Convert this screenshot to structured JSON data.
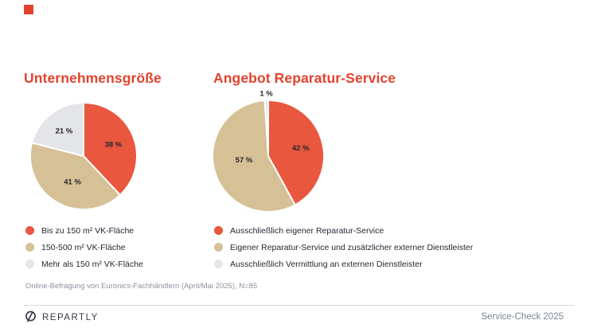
{
  "accent_color": "#e2432e",
  "chart_data": [
    {
      "type": "pie",
      "title": "Unternehmensgröße",
      "categories": [
        "Bis zu 150 m² VK-Fläche",
        "150-500 m² VK-Fläche",
        "Mehr als 150 m² VK-Fläche"
      ],
      "values": [
        38,
        41,
        21
      ],
      "value_labels": [
        "38 %",
        "41 %",
        "21 %"
      ],
      "colors": [
        "#e8573e",
        "#d6c096",
        "#e4e5e8"
      ],
      "start_angle": "top",
      "direction": "clockwise",
      "legend_position": "bottom-left"
    },
    {
      "type": "pie",
      "title": "Angebot Reparatur-Service",
      "categories": [
        "Ausschließlich eigener Reparatur-Service",
        "Eigener Reparatur-Service und zusätzlicher externer Dienstleister",
        "Ausschließlich Vermittlung an externen Dienstleister"
      ],
      "values": [
        42,
        57,
        1
      ],
      "value_labels": [
        "42 %",
        "57 %",
        "1 %"
      ],
      "colors": [
        "#e8573e",
        "#d6c096",
        "#e4e5e8"
      ],
      "start_angle": "top",
      "direction": "clockwise",
      "legend_position": "bottom-left"
    }
  ],
  "footnote": "Online-Befragung von Euronics-Fachhändlern (April/Mai 2025), N=85",
  "footer": {
    "brand": "REPARTLY",
    "right_text": "Service-Check 2025"
  }
}
